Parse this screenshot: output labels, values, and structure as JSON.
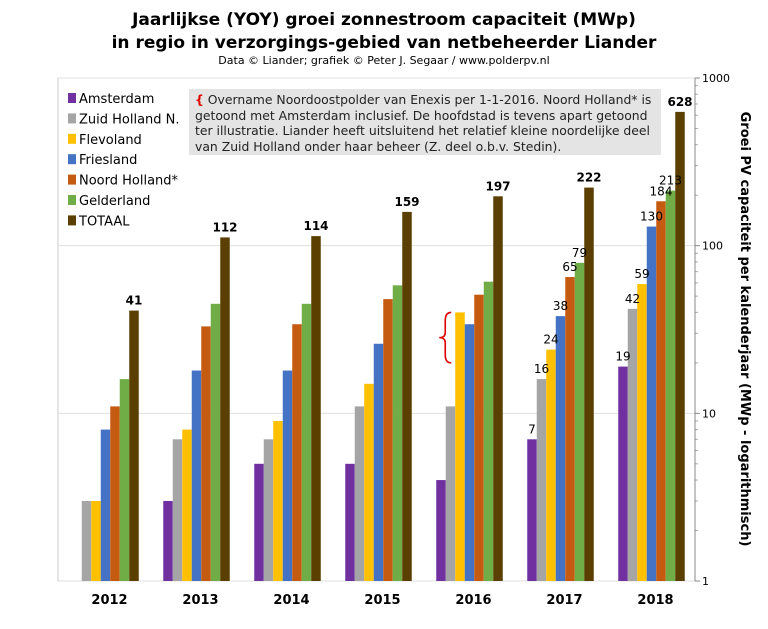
{
  "title_line1": "Jaarlijkse (YOY) groei zonnestroom capaciteit (MWp)",
  "title_line2": "in regio in verzorgings-gebied van netbeheerder Liander",
  "subtitle": "Data © Liander; grafiek © Peter J. Segaar / www.polderpv.nl",
  "annotation": {
    "brace": "{",
    "text": " Overname Noordoostpolder van Enexis per 1-1-2016. Noord Holland* is getoond met Amsterdam inclusief. De hoofdstad is tevens apart getoond ter illustratie. Liander heeft uitsluitend het relatief kleine noordelijke deel van Zuid Holland onder haar beheer (Z. deel o.b.v. Stedin)."
  },
  "chart_data": {
    "type": "bar",
    "categories": [
      "2012",
      "2013",
      "2014",
      "2015",
      "2016",
      "2017",
      "2018"
    ],
    "ylabel": "Groei PV capaciteit per kalenderjaar (MWp - logarithmisch)",
    "yscale": "log",
    "ylim": [
      1,
      1000
    ],
    "yticks": [
      "1",
      "10",
      "100",
      "1000"
    ],
    "legend_position": "top-left",
    "grid": true,
    "series": [
      {
        "name": "Amsterdam",
        "color": "#7030a0",
        "values": [
          null,
          3,
          5,
          5,
          4,
          7,
          19
        ]
      },
      {
        "name": "Zuid Holland N.",
        "color": "#a5a5a5",
        "values": [
          3,
          7,
          7,
          11,
          11,
          16,
          42
        ]
      },
      {
        "name": "Flevoland",
        "color": "#ffc000",
        "values": [
          3,
          8,
          9,
          15,
          40,
          24,
          59
        ]
      },
      {
        "name": "Friesland",
        "color": "#4472c4",
        "values": [
          8,
          18,
          18,
          26,
          34,
          38,
          130
        ]
      },
      {
        "name": "Noord Holland*",
        "color": "#c55a11",
        "values": [
          11,
          33,
          34,
          48,
          51,
          65,
          184
        ]
      },
      {
        "name": "Gelderland",
        "color": "#70ad47",
        "values": [
          16,
          45,
          45,
          58,
          61,
          79,
          213
        ]
      },
      {
        "name": "TOTAAL",
        "color": "#5b3f00",
        "values": [
          41,
          112,
          114,
          159,
          197,
          222,
          628
        ]
      }
    ],
    "data_labels": [
      {
        "series": 0,
        "year": "2017",
        "text": "7"
      },
      {
        "series": 0,
        "year": "2018",
        "text": "19"
      },
      {
        "series": 1,
        "year": "2017",
        "text": "16"
      },
      {
        "series": 1,
        "year": "2018",
        "text": "42"
      },
      {
        "series": 2,
        "year": "2017",
        "text": "24"
      },
      {
        "series": 2,
        "year": "2018",
        "text": "59"
      },
      {
        "series": 3,
        "year": "2017",
        "text": "38"
      },
      {
        "series": 3,
        "year": "2018",
        "text": "130"
      },
      {
        "series": 4,
        "year": "2017",
        "text": "65"
      },
      {
        "series": 4,
        "year": "2018",
        "text": "184"
      },
      {
        "series": 5,
        "year": "2017",
        "text": "79"
      },
      {
        "series": 5,
        "year": "2018",
        "text": "213"
      },
      {
        "series": 6,
        "year": "2012",
        "text": "41",
        "bold": true
      },
      {
        "series": 6,
        "year": "2013",
        "text": "112",
        "bold": true
      },
      {
        "series": 6,
        "year": "2014",
        "text": "114",
        "bold": true
      },
      {
        "series": 6,
        "year": "2015",
        "text": "159",
        "bold": true
      },
      {
        "series": 6,
        "year": "2016",
        "text": "197",
        "bold": true
      },
      {
        "series": 6,
        "year": "2017",
        "text": "222",
        "bold": true
      },
      {
        "series": 6,
        "year": "2018",
        "text": "628",
        "bold": true
      }
    ],
    "highlight": {
      "series": 2,
      "year": "2016",
      "color": "#e00000"
    }
  }
}
